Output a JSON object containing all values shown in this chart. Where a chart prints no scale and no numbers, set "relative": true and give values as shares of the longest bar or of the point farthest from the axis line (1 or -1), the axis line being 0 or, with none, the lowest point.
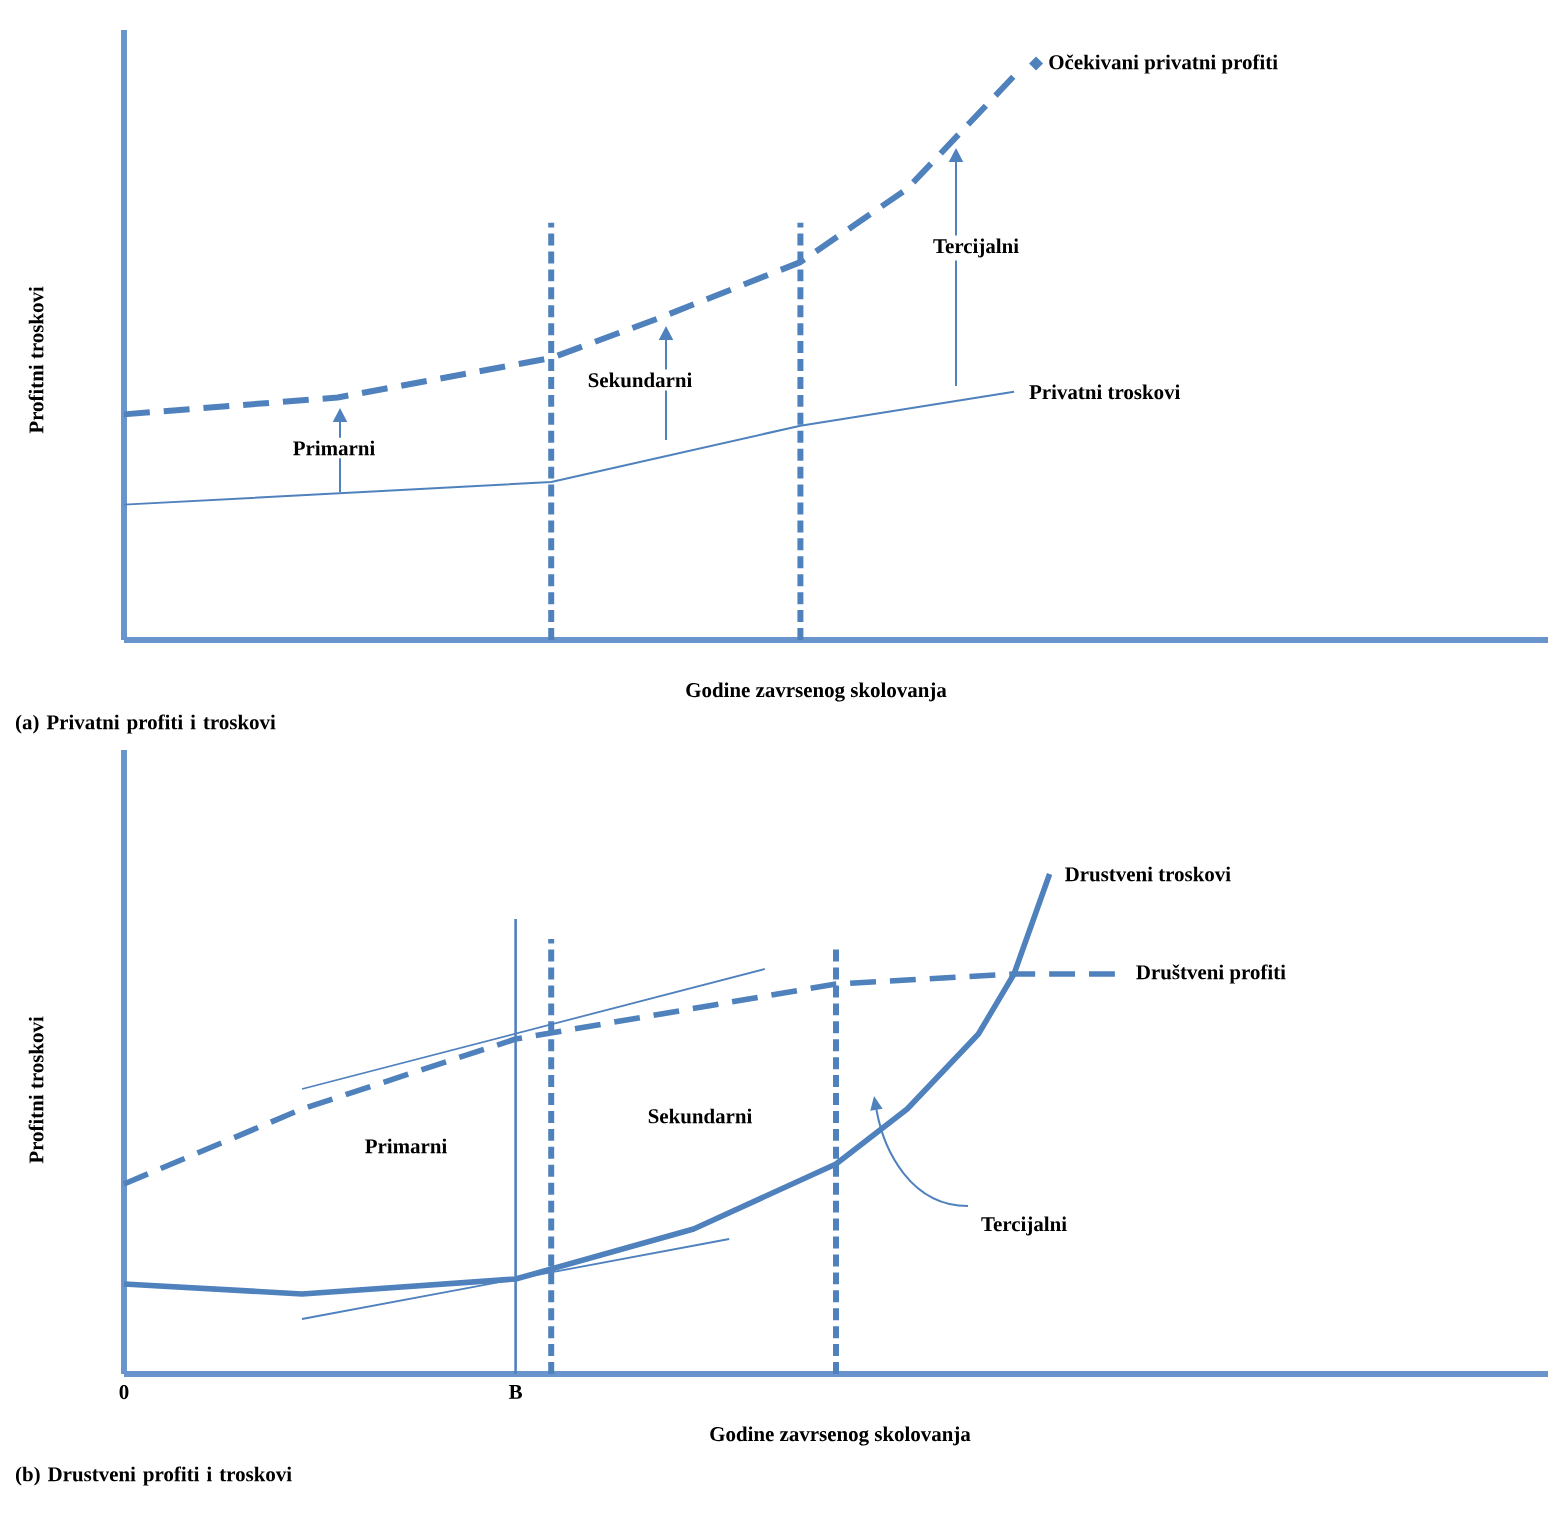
{
  "chart_data": [
    {
      "type": "line",
      "title": "(a) Privatni profiti i troskovi",
      "xlabel": "Godine zavrsenog skolovanja",
      "ylabel": "Profitni troskovi",
      "relative": true,
      "tick_labels": false,
      "categories": [
        null,
        null,
        null,
        null,
        null,
        null,
        null,
        null,
        null,
        null,
        null,
        null,
        null,
        null,
        null,
        null,
        null,
        null,
        null,
        null,
        null,
        null,
        null,
        null,
        null,
        null,
        null,
        null,
        null,
        null,
        null,
        null,
        null,
        null,
        null,
        null,
        null,
        null,
        null,
        null
      ],
      "series": [
        {
          "name": "Očekivani privatni profiti",
          "color": "#4f81bd",
          "line_style": "dashed",
          "values": [
            0.4,
            null,
            null,
            null,
            null,
            null,
            0.43,
            null,
            null,
            null,
            null,
            null,
            0.5,
            null,
            null,
            0.57,
            null,
            null,
            null,
            0.67,
            null,
            null,
            0.8,
            null,
            null,
            1.0,
            null,
            null,
            null,
            null,
            null,
            null,
            null,
            null,
            null,
            null,
            null,
            null,
            null,
            null
          ]
        },
        {
          "name": "Privatni troskovi",
          "color": "#4f81bd",
          "line_style": "solid",
          "values": [
            0.24,
            null,
            null,
            null,
            null,
            null,
            null,
            null,
            null,
            null,
            null,
            null,
            0.28,
            null,
            null,
            null,
            null,
            null,
            null,
            0.38,
            null,
            null,
            null,
            null,
            null,
            0.44,
            null,
            null,
            null,
            null,
            null,
            null,
            null,
            null,
            null,
            null,
            null,
            null,
            null,
            null
          ]
        }
      ],
      "annotations": [
        "Primarni",
        "Sekundarni",
        "Tercijalni"
      ]
    },
    {
      "type": "line",
      "title": "(b) Drustveni profiti i troskovi",
      "xlabel": "Godine zavrsenog skolovanja",
      "ylabel": "Profitni troskovi",
      "relative": true,
      "tick_labels": "x",
      "categories": [
        "0",
        null,
        null,
        null,
        null,
        null,
        null,
        null,
        null,
        null,
        null,
        "B",
        null,
        null,
        null,
        null,
        null,
        null,
        null,
        null,
        null,
        null,
        null,
        null,
        null,
        null,
        null,
        null,
        null,
        null,
        null,
        null,
        null,
        null,
        null,
        null,
        null,
        null,
        null,
        null
      ],
      "series": [
        {
          "name": "Drustveni troskovi",
          "color": "#4f81bd",
          "line_style": "solid",
          "values": [
            0.18,
            null,
            null,
            null,
            null,
            0.16,
            null,
            null,
            null,
            null,
            null,
            0.19,
            null,
            null,
            null,
            null,
            0.29,
            null,
            null,
            null,
            0.42,
            null,
            0.53,
            null,
            0.68,
            0.8,
            1.0,
            null,
            null,
            null,
            null,
            null,
            null,
            null,
            null,
            null,
            null,
            null,
            null,
            null
          ]
        },
        {
          "name": "Društveni profiti",
          "color": "#4f81bd",
          "line_style": "dashed",
          "values": [
            0.38,
            null,
            null,
            null,
            null,
            0.53,
            null,
            null,
            null,
            null,
            null,
            0.67,
            null,
            null,
            null,
            null,
            null,
            null,
            null,
            null,
            0.78,
            null,
            null,
            null,
            null,
            0.8,
            null,
            null,
            0.8,
            null,
            null,
            null,
            null,
            null,
            null,
            null,
            null,
            null,
            null,
            null
          ]
        },
        {
          "color": "#4f81bd",
          "line_style": "solid",
          "values": [
            null,
            null,
            null,
            null,
            null,
            0.57,
            null,
            null,
            null,
            null,
            null,
            null,
            null,
            null,
            null,
            null,
            null,
            null,
            0.81,
            null,
            null,
            null,
            null,
            null,
            null,
            null,
            null,
            null,
            null,
            null,
            null,
            null,
            null,
            null,
            null,
            null,
            null,
            null,
            null,
            null
          ]
        },
        {
          "color": "#4f81bd",
          "line_style": "solid",
          "values": [
            null,
            null,
            null,
            null,
            null,
            0.11,
            null,
            null,
            null,
            null,
            null,
            null,
            null,
            null,
            null,
            null,
            null,
            0.27,
            null,
            null,
            null,
            null,
            null,
            null,
            null,
            null,
            null,
            null,
            null,
            null,
            null,
            null,
            null,
            null,
            null,
            null,
            null,
            null,
            null,
            null
          ]
        }
      ],
      "ref_lines": [
        {
          "axis": "x",
          "value": "B",
          "color": "#4f81bd",
          "line_style": "solid"
        }
      ],
      "annotations": [
        "Primarni",
        "Sekundarni",
        "Tercijalni"
      ]
    }
  ]
}
